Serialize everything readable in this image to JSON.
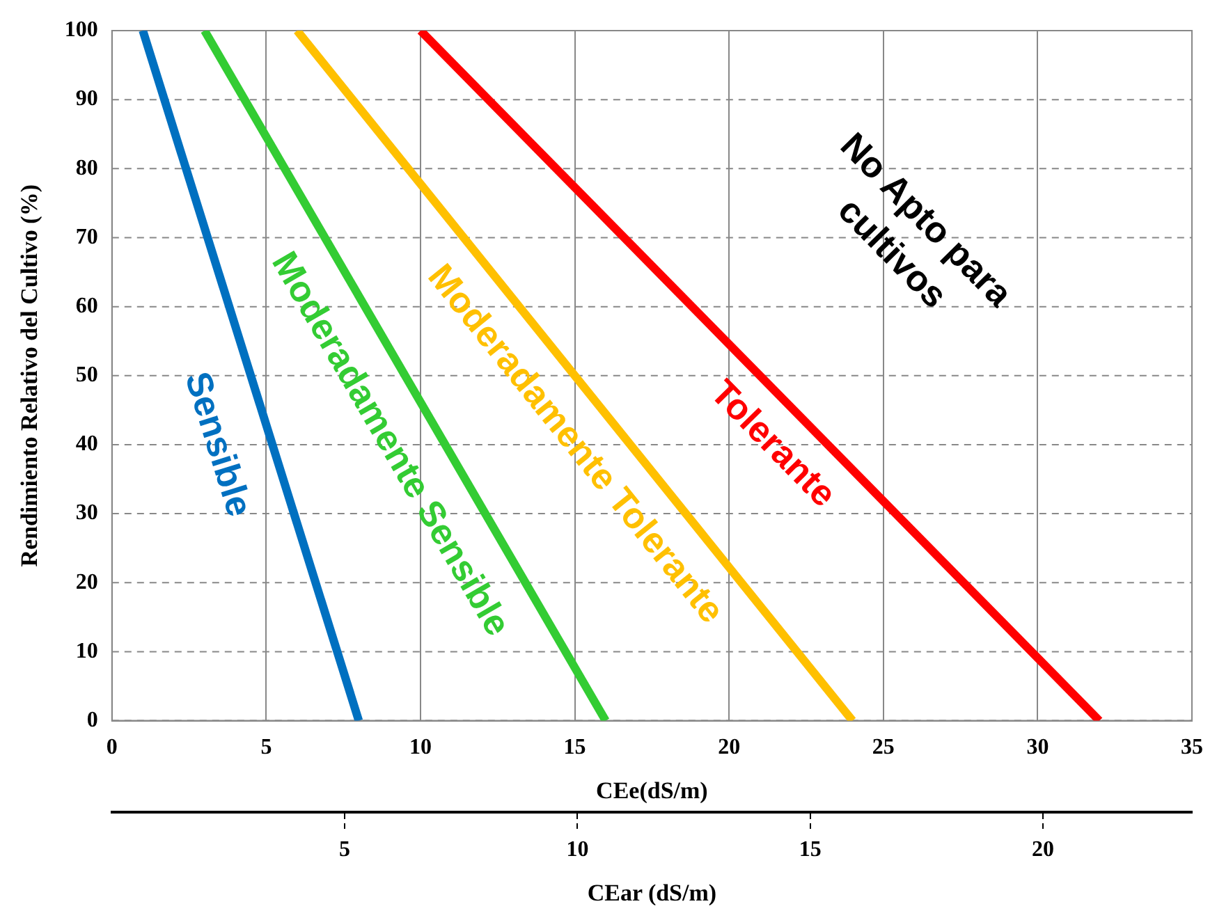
{
  "chart_data": {
    "type": "line",
    "xlabel": "CEe(dS/m)",
    "ylabel": "Rendimiento Relativo del Cultivo (%)",
    "x2label": "CEar (dS/m)",
    "xlim": [
      0,
      35
    ],
    "xticks": [
      0,
      5,
      10,
      15,
      20,
      25,
      30,
      35
    ],
    "ylim": [
      0,
      100
    ],
    "yticks": [
      0,
      10,
      20,
      30,
      40,
      50,
      60,
      70,
      80,
      90,
      100
    ],
    "x2lim": [
      0,
      23.2
    ],
    "x2ticks": [
      5,
      10,
      15,
      20
    ],
    "series": [
      {
        "name": "Sensible",
        "color": "#0070c0",
        "x": [
          1,
          8
        ],
        "values": [
          100,
          0
        ]
      },
      {
        "name": "Moderadamente Sensible",
        "color": "#33cc33",
        "x": [
          3,
          16
        ],
        "values": [
          100,
          0
        ]
      },
      {
        "name": "Moderadamente Tolerante",
        "color": "#ffc000",
        "x": [
          6,
          24
        ],
        "values": [
          100,
          0
        ]
      },
      {
        "name": "Tolerante",
        "color": "#ff0000",
        "x": [
          10,
          32
        ],
        "values": [
          100,
          0
        ]
      }
    ],
    "annotations": [
      "No Apto para\ncultivos"
    ],
    "grid": true,
    "legend": false,
    "marker": "none",
    "line_style": "solid"
  }
}
